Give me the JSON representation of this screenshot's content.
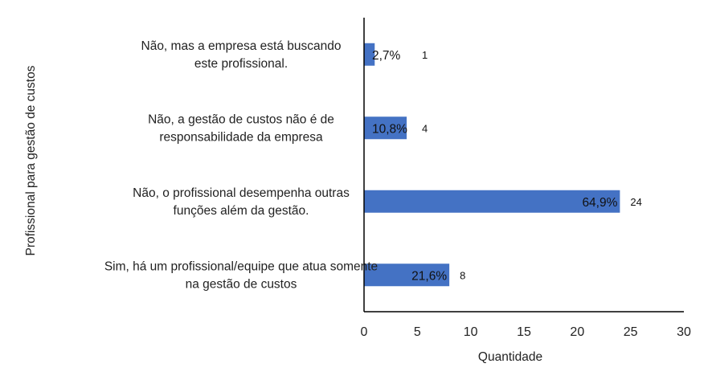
{
  "chart_data": {
    "type": "bar",
    "orientation": "horizontal",
    "categories": [
      "Não, mas a empresa está buscando este profissional.",
      "Não, a gestão de custos não é de responsabilidade da empresa",
      "Não, o profissional desempenha outras funções além da gestão.",
      "Sim, há um profissional/equipe que atua somente na gestão de custos"
    ],
    "category_lines": [
      [
        "Não, mas a empresa está buscando",
        "este profissional."
      ],
      [
        "Não, a gestão de custos não é de",
        "responsabilidade da empresa"
      ],
      [
        "Não, o profissional desempenha outras",
        "funções além da gestão."
      ],
      [
        "Sim, há um profissional/equipe que atua somente",
        "na gestão de custos"
      ]
    ],
    "values": [
      1,
      4,
      24,
      8
    ],
    "value_labels": [
      "1",
      "4",
      "24",
      "8"
    ],
    "percent_labels": [
      "2,7%",
      "10,8%",
      "64,9%",
      "21,6%"
    ],
    "xlabel": "Quantidade",
    "ylabel": "Profissional para gestão de custos",
    "xlim": [
      0,
      30
    ],
    "xticks": [
      "0",
      "5",
      "10",
      "15",
      "20",
      "25",
      "30"
    ],
    "grid": false,
    "legend": "none",
    "bar_color": "#4472C4",
    "axis_color": "#000000"
  }
}
